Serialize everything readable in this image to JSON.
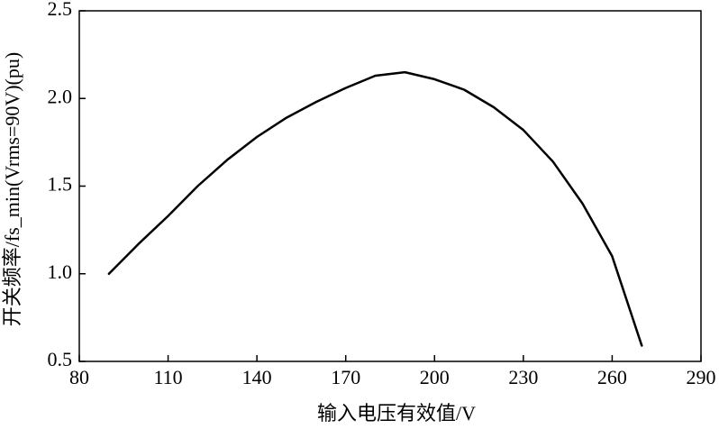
{
  "chart_data": {
    "type": "line",
    "x_label": "输入电压有效值/V",
    "y_label": "开关频率/fs_min(Vrms=90V)(pu)",
    "x": [
      90,
      100,
      110,
      120,
      130,
      140,
      150,
      160,
      170,
      180,
      190,
      200,
      210,
      220,
      230,
      240,
      250,
      260,
      270
    ],
    "values": [
      1.0,
      1.17,
      1.33,
      1.5,
      1.65,
      1.78,
      1.89,
      1.98,
      2.06,
      2.13,
      2.15,
      2.11,
      2.05,
      1.95,
      1.82,
      1.64,
      1.4,
      1.1,
      0.59
    ],
    "color": "#000000",
    "xlim": [
      80,
      290
    ],
    "xticks": [
      80,
      110,
      140,
      170,
      200,
      230,
      260,
      290
    ],
    "ylim": [
      0.5,
      2.5
    ],
    "yticks": [
      0.5,
      {
        "value": 1.0,
        "label": "1.0"
      },
      1.5,
      {
        "value": 2.0,
        "label": "2.0"
      },
      2.5
    ],
    "grid": false
  }
}
